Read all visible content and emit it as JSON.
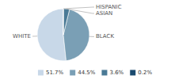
{
  "chart_data": {
    "type": "pie",
    "categories": [
      "WHITE",
      "BLACK",
      "ASIAN",
      "HISPANIC"
    ],
    "values": [
      51.7,
      44.5,
      3.6,
      0.2
    ],
    "value_labels": [
      "51.7%",
      "44.5%",
      "3.6%",
      "0.2%"
    ],
    "colors": [
      "#c8d8e8",
      "#7a9fb5",
      "#4a7a96",
      "#1a4a6e"
    ],
    "legend": "bottom"
  }
}
